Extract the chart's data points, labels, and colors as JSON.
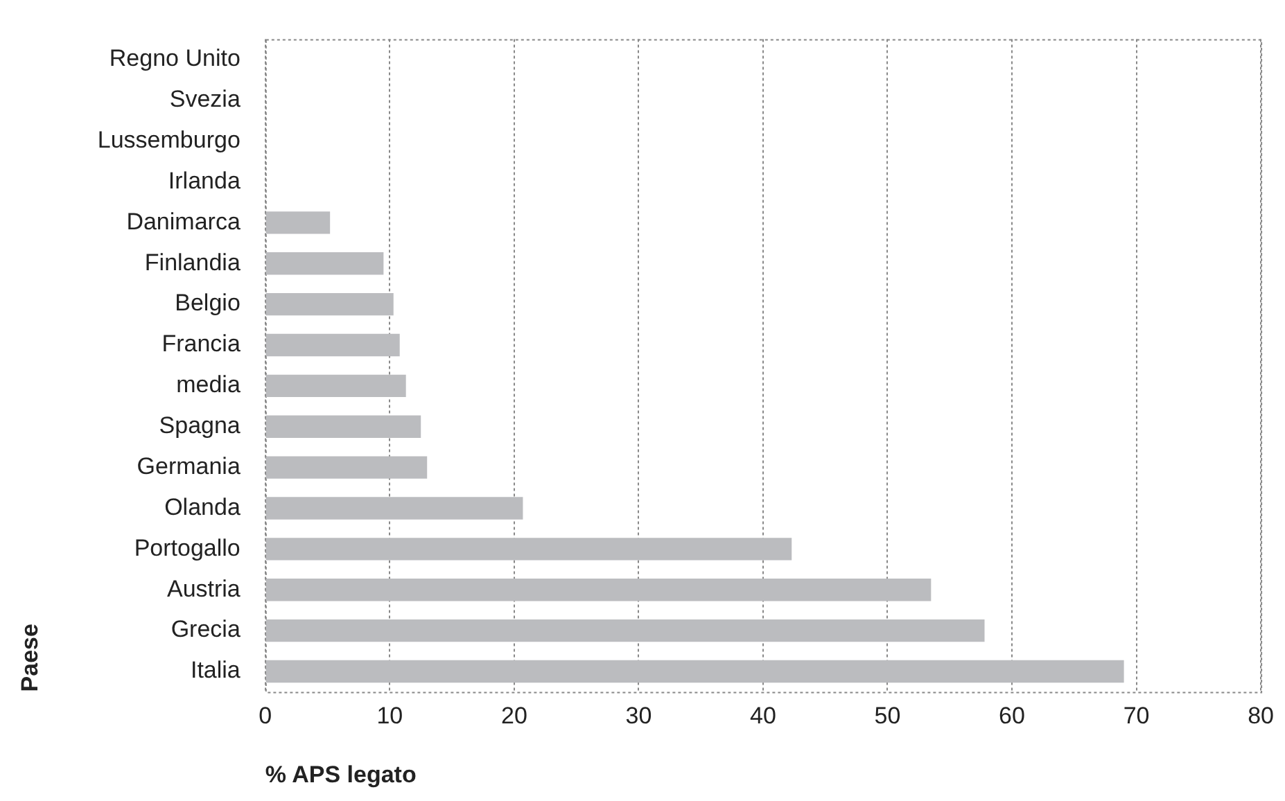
{
  "chart_data": {
    "type": "bar",
    "orientation": "horizontal",
    "xlabel": "% APS legato",
    "ylabel": "Paese",
    "categories": [
      "Regno Unito",
      "Svezia",
      "Lussemburgo",
      "Irlanda",
      "Danimarca",
      "Finlandia",
      "Belgio",
      "Francia",
      "media",
      "Spagna",
      "Germania",
      "Olanda",
      "Portogallo",
      "Austria",
      "Grecia",
      "Italia"
    ],
    "values": [
      0,
      0,
      0,
      0,
      5.2,
      9.5,
      10.3,
      10.8,
      11.3,
      12.5,
      13.0,
      20.7,
      42.3,
      53.5,
      57.8,
      69.0
    ],
    "color": "#bbbcbf",
    "xlim": [
      0,
      80
    ],
    "xticks": [
      0,
      10,
      20,
      30,
      40,
      50,
      60,
      70,
      80
    ],
    "grid": "x",
    "legend": false
  }
}
